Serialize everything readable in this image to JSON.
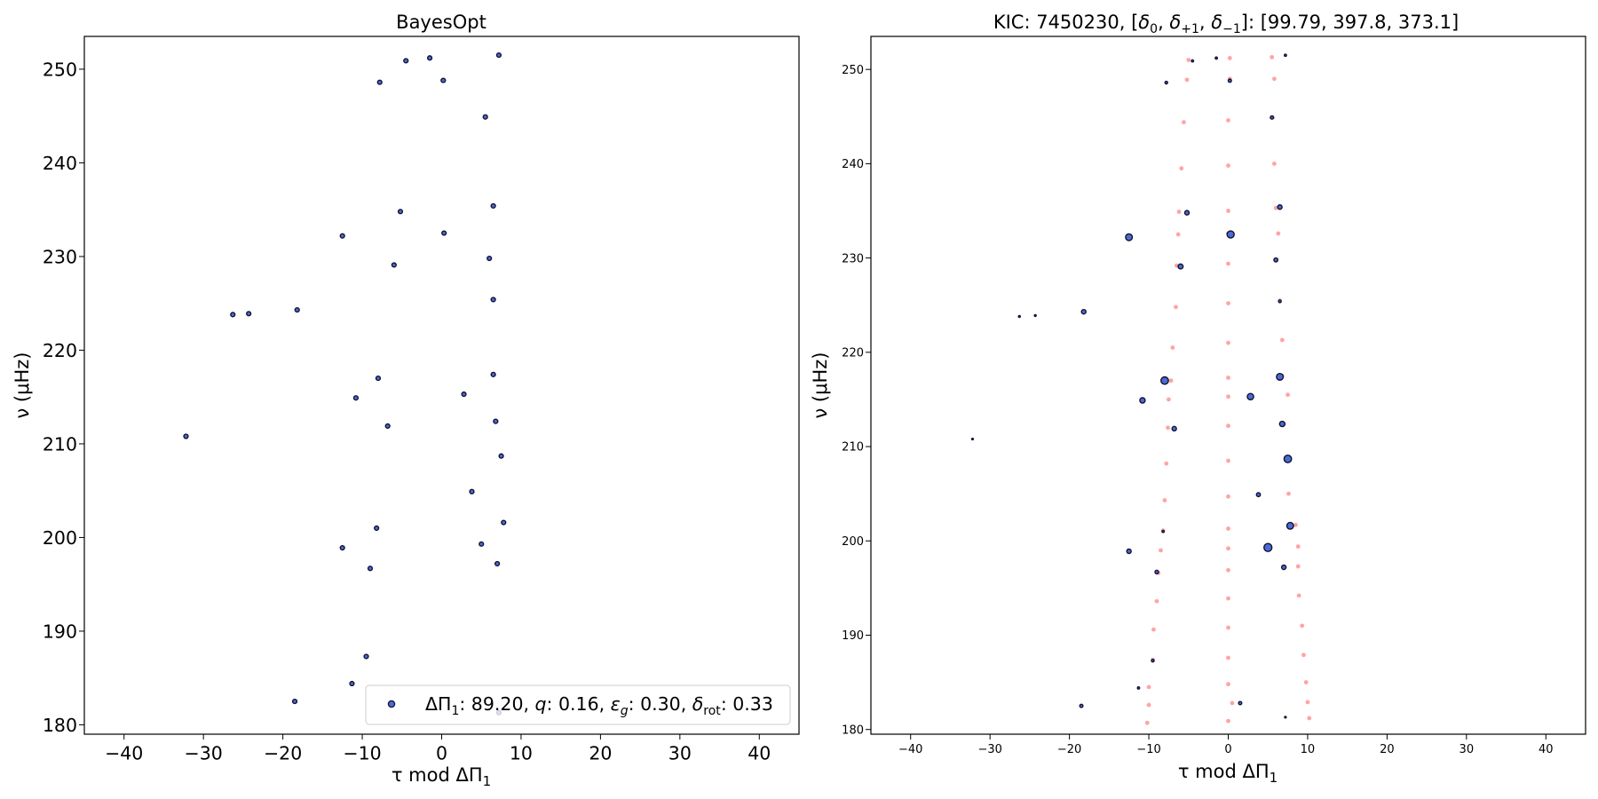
{
  "chart_data": [
    {
      "type": "scatter",
      "title": "BayesOpt",
      "xlabel": "τ mod ΔΠ",
      "xlabel_sub": "1",
      "ylabel": "ν (μHz)",
      "xlim": [
        -45,
        45
      ],
      "ylim": [
        179,
        253.5
      ],
      "xticks": [
        -40,
        -30,
        -20,
        -10,
        0,
        10,
        20,
        30,
        40
      ],
      "yticks": [
        180,
        190,
        200,
        210,
        220,
        230,
        240,
        250
      ],
      "grid": false,
      "legend_position": "bottom-right",
      "legend_label": {
        "dp_name": "ΔΠ",
        "dp_sub": "1",
        "dp_val": ": 89.20, ",
        "q_name": "q",
        "q_val": ": 0.16, ",
        "eps_name": "ε",
        "eps_sub": "g",
        "eps_val": ": 0.30, ",
        "rot_name": "δ",
        "rot_sub": "rot",
        "rot_val": ": 0.33"
      },
      "series": [
        {
          "marker_color": "#4b6bd0",
          "edge_color": "#111133",
          "points": [
            [
              7.2,
              251.5
            ],
            [
              -1.5,
              251.2
            ],
            [
              -4.5,
              250.9
            ],
            [
              -7.8,
              248.6
            ],
            [
              0.2,
              248.8
            ],
            [
              5.5,
              244.9
            ],
            [
              6.5,
              235.4
            ],
            [
              -5.2,
              234.8
            ],
            [
              -12.5,
              232.2
            ],
            [
              0.3,
              232.5
            ],
            [
              -6.0,
              229.1
            ],
            [
              6.0,
              229.8
            ],
            [
              6.5,
              225.4
            ],
            [
              -18.2,
              224.3
            ],
            [
              -26.3,
              223.8
            ],
            [
              -24.3,
              223.9
            ],
            [
              6.5,
              217.4
            ],
            [
              -8.0,
              217.0
            ],
            [
              2.8,
              215.3
            ],
            [
              -10.8,
              214.9
            ],
            [
              6.8,
              212.4
            ],
            [
              -6.8,
              211.9
            ],
            [
              7.5,
              208.7
            ],
            [
              -32.2,
              210.8
            ],
            [
              3.8,
              204.9
            ],
            [
              7.8,
              201.6
            ],
            [
              -8.2,
              201.0
            ],
            [
              5.0,
              199.3
            ],
            [
              -12.5,
              198.9
            ],
            [
              7.0,
              197.2
            ],
            [
              -9.0,
              196.7
            ],
            [
              -9.5,
              187.3
            ],
            [
              -11.3,
              184.4
            ],
            [
              -18.5,
              182.5
            ],
            [
              7.2,
              181.3
            ]
          ]
        }
      ]
    },
    {
      "type": "scatter",
      "title": "KIC: 7450230, [δ",
      "title_parts": {
        "lead": "KIC: 7450230, [",
        "d": "δ",
        "s0": "0",
        "s1": "+1",
        "s2": "−1",
        "comma": ", ",
        "tail": "]: [99.79, 397.8, 373.1]"
      },
      "xlabel": "τ mod ΔΠ",
      "xlabel_sub": "1",
      "ylabel": "ν (μHz)",
      "xlim": [
        -45,
        45
      ],
      "ylim": [
        179.5,
        253.5
      ],
      "xticks": [
        -40,
        -30,
        -20,
        -10,
        0,
        10,
        20,
        30,
        40
      ],
      "yticks": [
        180,
        190,
        200,
        210,
        220,
        230,
        240,
        250
      ],
      "grid": false,
      "series": [
        {
          "marker_color": "#ff9a9a",
          "role": "model",
          "points": [
            [
              -5.0,
              251.0
            ],
            [
              0.2,
              251.2
            ],
            [
              5.5,
              251.3
            ],
            [
              -5.2,
              248.9
            ],
            [
              0.2,
              249.0
            ],
            [
              5.8,
              249.0
            ],
            [
              -5.6,
              244.4
            ],
            [
              0.0,
              244.6
            ],
            [
              5.6,
              244.9
            ],
            [
              -5.9,
              239.5
            ],
            [
              0.0,
              239.8
            ],
            [
              5.8,
              240.0
            ],
            [
              -6.2,
              234.9
            ],
            [
              0.0,
              235.0
            ],
            [
              6.0,
              235.3
            ],
            [
              -6.3,
              232.5
            ],
            [
              0.0,
              232.6
            ],
            [
              6.3,
              232.6
            ],
            [
              -6.5,
              229.2
            ],
            [
              0.0,
              229.4
            ],
            [
              6.0,
              229.7
            ],
            [
              -6.6,
              224.8
            ],
            [
              0.0,
              225.2
            ],
            [
              6.5,
              225.5
            ],
            [
              -7.0,
              220.5
            ],
            [
              0.0,
              221.0
            ],
            [
              6.8,
              221.3
            ],
            [
              -7.2,
              217.0
            ],
            [
              0.0,
              217.3
            ],
            [
              6.8,
              217.5
            ],
            [
              -7.5,
              215.0
            ],
            [
              0.0,
              215.3
            ],
            [
              7.5,
              215.5
            ],
            [
              -7.6,
              212.0
            ],
            [
              0.0,
              212.2
            ],
            [
              7.0,
              212.4
            ],
            [
              -7.8,
              208.2
            ],
            [
              0.0,
              208.5
            ],
            [
              7.5,
              208.7
            ],
            [
              -8.0,
              204.3
            ],
            [
              0.0,
              204.7
            ],
            [
              7.6,
              205.0
            ],
            [
              -8.2,
              201.1
            ],
            [
              0.0,
              201.3
            ],
            [
              8.5,
              201.7
            ],
            [
              -8.5,
              199.0
            ],
            [
              0.0,
              199.2
            ],
            [
              8.8,
              199.4
            ],
            [
              -8.8,
              196.6
            ],
            [
              0.0,
              196.9
            ],
            [
              8.8,
              197.3
            ],
            [
              -9.0,
              193.6
            ],
            [
              0.0,
              193.9
            ],
            [
              8.9,
              194.2
            ],
            [
              -9.4,
              190.6
            ],
            [
              0.0,
              190.8
            ],
            [
              9.3,
              191.0
            ],
            [
              -9.5,
              187.4
            ],
            [
              0.0,
              187.6
            ],
            [
              9.5,
              187.9
            ],
            [
              -10.0,
              184.5
            ],
            [
              0.0,
              184.8
            ],
            [
              9.8,
              185.0
            ],
            [
              -10.0,
              182.6
            ],
            [
              0.5,
              182.8
            ],
            [
              10.0,
              182.9
            ],
            [
              -10.2,
              180.7
            ],
            [
              0.0,
              180.9
            ],
            [
              10.2,
              181.2
            ]
          ]
        },
        {
          "marker_color": "#4b6bd0",
          "edge_color": "#111133",
          "role": "observed",
          "points": [
            [
              7.2,
              251.5,
              1.2
            ],
            [
              -1.5,
              251.2,
              1.2
            ],
            [
              -4.5,
              250.9,
              1.2
            ],
            [
              -7.8,
              248.6,
              1.5
            ],
            [
              0.2,
              248.8,
              1.8
            ],
            [
              5.5,
              244.9,
              1.8
            ],
            [
              6.5,
              235.4,
              2.5
            ],
            [
              -5.2,
              234.8,
              2.5
            ],
            [
              -12.5,
              232.2,
              3.8
            ],
            [
              0.3,
              232.5,
              4.0
            ],
            [
              -6.0,
              229.1,
              2.8
            ],
            [
              6.0,
              229.8,
              2.2
            ],
            [
              6.5,
              225.4,
              1.5
            ],
            [
              -18.2,
              224.3,
              2.5
            ],
            [
              -26.3,
              223.8,
              1.0
            ],
            [
              -24.3,
              223.9,
              1.0
            ],
            [
              6.5,
              217.4,
              3.8
            ],
            [
              -8.0,
              217.0,
              4.2
            ],
            [
              2.8,
              215.3,
              3.6
            ],
            [
              -10.8,
              214.9,
              3.0
            ],
            [
              6.8,
              212.4,
              3.0
            ],
            [
              -6.8,
              211.9,
              2.5
            ],
            [
              7.5,
              208.7,
              4.2
            ],
            [
              -32.2,
              210.8,
              0.9
            ],
            [
              3.8,
              204.9,
              2.2
            ],
            [
              7.8,
              201.6,
              3.8
            ],
            [
              -8.2,
              201.0,
              1.2
            ],
            [
              5.0,
              199.3,
              4.5
            ],
            [
              -12.5,
              198.9,
              2.5
            ],
            [
              7.0,
              197.2,
              2.5
            ],
            [
              -9.0,
              196.7,
              2.0
            ],
            [
              -9.5,
              187.3,
              1.5
            ],
            [
              -11.3,
              184.4,
              1.2
            ],
            [
              -18.5,
              182.5,
              1.8
            ],
            [
              1.5,
              182.8,
              1.8
            ],
            [
              7.2,
              181.3,
              0.9
            ]
          ]
        }
      ]
    }
  ]
}
